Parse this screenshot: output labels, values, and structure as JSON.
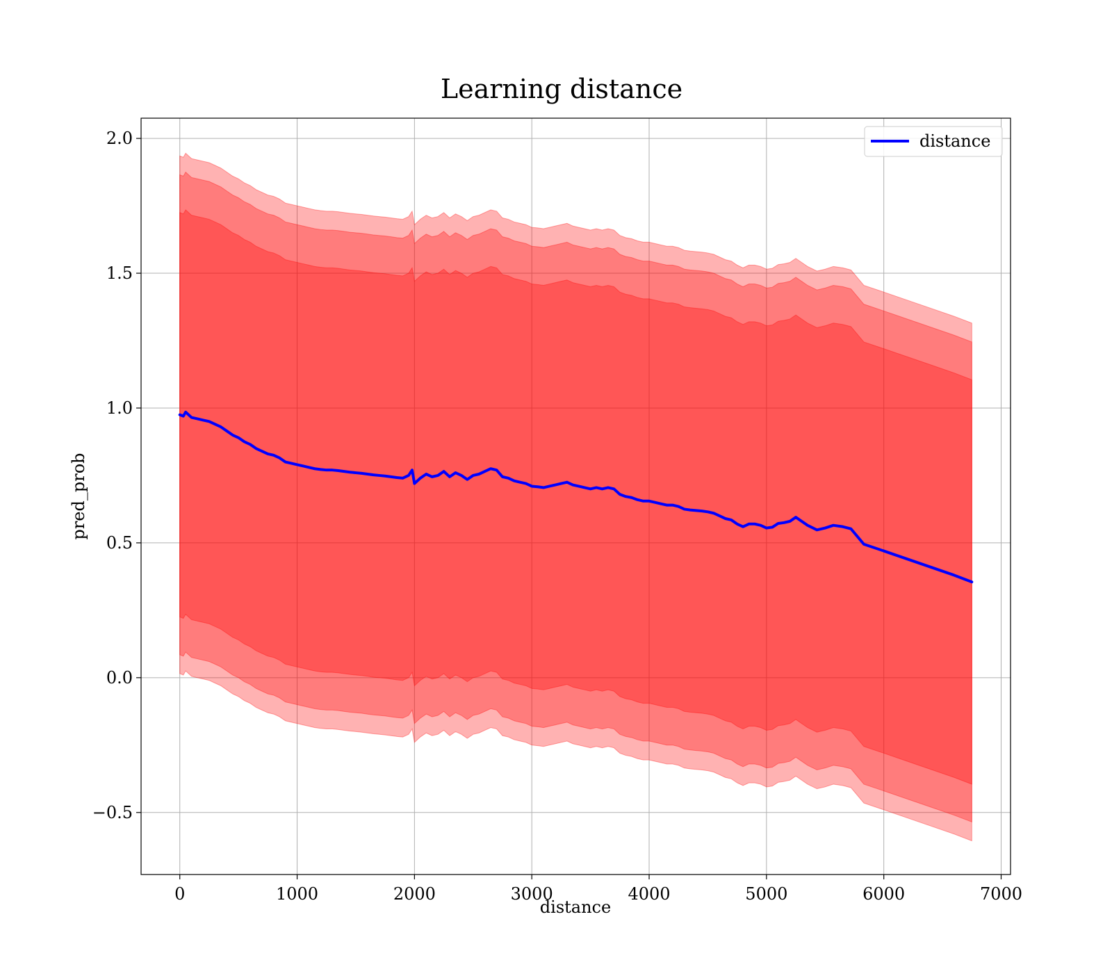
{
  "chart_data": {
    "type": "line",
    "title": "Learning distance",
    "xlabel": "distance",
    "ylabel": "pred_prob",
    "xlim": [
      -330,
      7080
    ],
    "ylim": [
      -0.73,
      2.075
    ],
    "xticks": [
      0,
      1000,
      2000,
      3000,
      4000,
      5000,
      6000,
      7000
    ],
    "xtick_labels": [
      "0",
      "1000",
      "2000",
      "3000",
      "4000",
      "5000",
      "6000",
      "7000"
    ],
    "yticks": [
      -0.5,
      0.0,
      0.5,
      1.0,
      1.5,
      2.0
    ],
    "ytick_labels": [
      "−0.5",
      "0.0",
      "0.5",
      "1.0",
      "1.5",
      "2.0"
    ],
    "grid": true,
    "legend": {
      "placement": "top-right",
      "entries": [
        "distance"
      ]
    },
    "colors": {
      "line": "#0000ff",
      "band_color": "#ff0000",
      "band_opacity": 0.3,
      "grid": "#b0b0b0"
    },
    "series": [
      {
        "name": "distance",
        "x": [
          0,
          30,
          50,
          100,
          150,
          200,
          250,
          300,
          350,
          400,
          450,
          500,
          550,
          600,
          650,
          700,
          750,
          800,
          850,
          900,
          950,
          1000,
          1050,
          1100,
          1150,
          1200,
          1250,
          1300,
          1350,
          1400,
          1450,
          1500,
          1550,
          1600,
          1650,
          1700,
          1750,
          1800,
          1850,
          1900,
          1950,
          1980,
          2000,
          2050,
          2100,
          2150,
          2200,
          2250,
          2300,
          2350,
          2400,
          2450,
          2500,
          2550,
          2600,
          2650,
          2700,
          2750,
          2800,
          2850,
          2900,
          2950,
          3000,
          3050,
          3100,
          3150,
          3200,
          3250,
          3300,
          3350,
          3400,
          3450,
          3500,
          3550,
          3600,
          3650,
          3700,
          3750,
          3800,
          3850,
          3900,
          3950,
          4000,
          4050,
          4100,
          4150,
          4200,
          4250,
          4300,
          4350,
          4400,
          4450,
          4500,
          4550,
          4600,
          4650,
          4700,
          4750,
          4800,
          4850,
          4900,
          4950,
          5000,
          5050,
          5100,
          5150,
          5200,
          5250,
          5300,
          5350,
          5430,
          5500,
          5570,
          5650,
          5720,
          5830,
          6000,
          6200,
          6400,
          6600,
          6750
        ],
        "y": [
          0.975,
          0.97,
          0.985,
          0.965,
          0.96,
          0.955,
          0.95,
          0.94,
          0.93,
          0.915,
          0.9,
          0.89,
          0.875,
          0.865,
          0.85,
          0.84,
          0.83,
          0.825,
          0.815,
          0.8,
          0.795,
          0.79,
          0.785,
          0.78,
          0.775,
          0.772,
          0.77,
          0.77,
          0.768,
          0.765,
          0.762,
          0.76,
          0.758,
          0.755,
          0.752,
          0.75,
          0.748,
          0.745,
          0.742,
          0.74,
          0.75,
          0.77,
          0.72,
          0.74,
          0.755,
          0.745,
          0.75,
          0.765,
          0.745,
          0.76,
          0.75,
          0.735,
          0.75,
          0.755,
          0.765,
          0.775,
          0.77,
          0.745,
          0.74,
          0.73,
          0.725,
          0.72,
          0.71,
          0.708,
          0.705,
          0.71,
          0.715,
          0.72,
          0.725,
          0.715,
          0.71,
          0.705,
          0.7,
          0.705,
          0.7,
          0.705,
          0.7,
          0.68,
          0.672,
          0.668,
          0.66,
          0.655,
          0.655,
          0.65,
          0.645,
          0.64,
          0.64,
          0.635,
          0.625,
          0.622,
          0.62,
          0.618,
          0.615,
          0.61,
          0.6,
          0.59,
          0.585,
          0.57,
          0.56,
          0.57,
          0.57,
          0.565,
          0.555,
          0.558,
          0.572,
          0.575,
          0.58,
          0.595,
          0.58,
          0.565,
          0.548,
          0.555,
          0.565,
          0.56,
          0.552,
          0.495,
          0.47,
          0.44,
          0.41,
          0.38,
          0.355
        ]
      }
    ],
    "bands": [
      {
        "half_width": 0.75
      },
      {
        "half_width": 0.89
      },
      {
        "half_width": 0.96
      }
    ]
  }
}
